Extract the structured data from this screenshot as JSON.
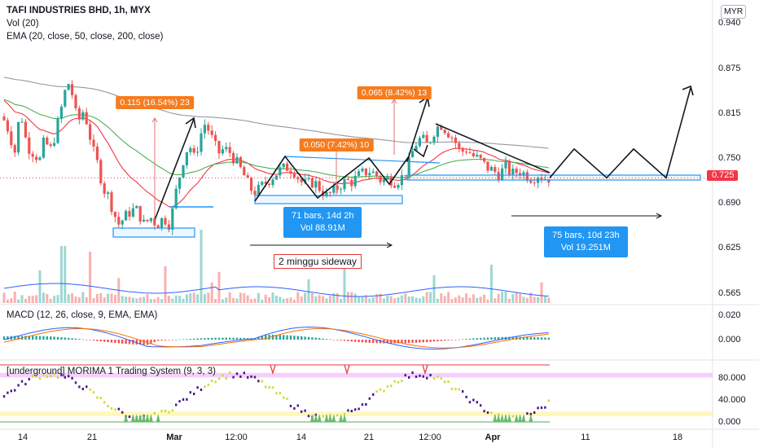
{
  "header": {
    "title": "TAFI INDUSTRIES BHD, 1h, MYX",
    "indicator_vol": "Vol (20)",
    "indicator_ema": "EMA (20, close, 50, close, 200, close)",
    "currency": "MYR"
  },
  "current_price": "0.725",
  "chart_data": [
    {
      "type": "candlestick",
      "panel": "price",
      "ylim": [
        0.54,
        0.96
      ],
      "y_ticks": [
        "0.940",
        "0.875",
        "0.815",
        "0.750",
        "0.690",
        "0.625",
        "0.565"
      ],
      "x_ticks": [
        "14",
        "21",
        "Mar",
        "12:00",
        "14",
        "21",
        "12:00",
        "Apr",
        "11",
        "18"
      ],
      "x_ticks_bold": [
        "Mar",
        "Apr"
      ],
      "last_price": 0.725,
      "price_path": [
        [
          0,
          0.81
        ],
        [
          8,
          0.79
        ],
        [
          15,
          0.76
        ],
        [
          22,
          0.82
        ],
        [
          30,
          0.77
        ],
        [
          38,
          0.76
        ],
        [
          46,
          0.75
        ],
        [
          52,
          0.78
        ],
        [
          58,
          0.76
        ],
        [
          66,
          0.79
        ],
        [
          74,
          0.83
        ],
        [
          80,
          0.86
        ],
        [
          86,
          0.84
        ],
        [
          92,
          0.8
        ],
        [
          100,
          0.82
        ],
        [
          106,
          0.79
        ],
        [
          112,
          0.76
        ],
        [
          118,
          0.74
        ],
        [
          124,
          0.71
        ],
        [
          130,
          0.7
        ],
        [
          136,
          0.68
        ],
        [
          142,
          0.66
        ],
        [
          150,
          0.67
        ],
        [
          158,
          0.68
        ],
        [
          166,
          0.68
        ],
        [
          174,
          0.66
        ],
        [
          182,
          0.67
        ],
        [
          190,
          0.66
        ],
        [
          198,
          0.67
        ],
        [
          206,
          0.66
        ],
        [
          212,
          0.7
        ],
        [
          218,
          0.73
        ],
        [
          224,
          0.76
        ],
        [
          230,
          0.77
        ],
        [
          236,
          0.75
        ],
        [
          242,
          0.78
        ],
        [
          248,
          0.8
        ],
        [
          254,
          0.79
        ],
        [
          260,
          0.77
        ],
        [
          266,
          0.76
        ],
        [
          272,
          0.765
        ],
        [
          280,
          0.76
        ],
        [
          288,
          0.745
        ],
        [
          296,
          0.73
        ],
        [
          304,
          0.71
        ],
        [
          312,
          0.705
        ],
        [
          320,
          0.715
        ],
        [
          330,
          0.725
        ],
        [
          340,
          0.735
        ],
        [
          350,
          0.74
        ],
        [
          358,
          0.735
        ],
        [
          366,
          0.72
        ],
        [
          374,
          0.715
        ],
        [
          382,
          0.72
        ],
        [
          390,
          0.71
        ],
        [
          398,
          0.7
        ],
        [
          406,
          0.705
        ],
        [
          414,
          0.715
        ],
        [
          422,
          0.72
        ],
        [
          430,
          0.72
        ],
        [
          440,
          0.73
        ],
        [
          450,
          0.735
        ],
        [
          458,
          0.73
        ],
        [
          466,
          0.72
        ],
        [
          474,
          0.725
        ],
        [
          482,
          0.72
        ],
        [
          490,
          0.725
        ],
        [
          498,
          0.74
        ],
        [
          506,
          0.77
        ],
        [
          514,
          0.78
        ],
        [
          522,
          0.77
        ],
        [
          530,
          0.79
        ],
        [
          538,
          0.8
        ],
        [
          546,
          0.79
        ],
        [
          554,
          0.78
        ],
        [
          562,
          0.76
        ],
        [
          570,
          0.765
        ],
        [
          578,
          0.755
        ],
        [
          586,
          0.75
        ],
        [
          594,
          0.74
        ],
        [
          602,
          0.735
        ],
        [
          610,
          0.73
        ],
        [
          618,
          0.74
        ],
        [
          626,
          0.73
        ],
        [
          634,
          0.735
        ],
        [
          642,
          0.73
        ],
        [
          650,
          0.725
        ],
        [
          658,
          0.73
        ],
        [
          666,
          0.725
        ],
        [
          672,
          0.725
        ]
      ],
      "ema_series": [
        {
          "name": "EMA 20",
          "color": "#f23645"
        },
        {
          "name": "EMA 50",
          "color": "#4caf50"
        },
        {
          "name": "EMA 200",
          "color": "#9598a1"
        }
      ],
      "annotations": {
        "badges": [
          {
            "text": "0.115 (16.54%) 23"
          },
          {
            "text": "0.050 (7.42%) 10"
          },
          {
            "text": "0.065 (8.42%) 13"
          }
        ],
        "info_boxes": [
          {
            "line1": "71 bars, 14d 2h",
            "line2": "Vol 88.91M"
          },
          {
            "line1": "75 bars, 10d 23h",
            "line2": "Vol 19.251M"
          }
        ],
        "note": "2 minggu sideway",
        "projection_points": [
          0.725,
          0.765,
          0.725,
          0.765,
          0.725,
          0.84
        ]
      }
    },
    {
      "type": "line",
      "panel": "macd",
      "label": "MACD (12, 26, close, 9, EMA, EMA)",
      "y_ticks": [
        "0.020",
        "0.000"
      ],
      "series": [
        {
          "name": "MACD",
          "color": "#2962ff"
        },
        {
          "name": "Signal",
          "color": "#ff6d00"
        }
      ]
    },
    {
      "type": "line",
      "panel": "oscillator",
      "label": "[underground] MORIMA 1 Trading System (9, 3, 3)",
      "y_ticks": [
        "80.000",
        "40.000",
        "0.000"
      ],
      "overbought": 80,
      "oversold": 15
    }
  ],
  "colors": {
    "up": "#26a69a",
    "down": "#ef5350",
    "annotation_orange": "#f57c1f",
    "annotation_blue": "#2196f3",
    "price_tag": "#f23645"
  }
}
